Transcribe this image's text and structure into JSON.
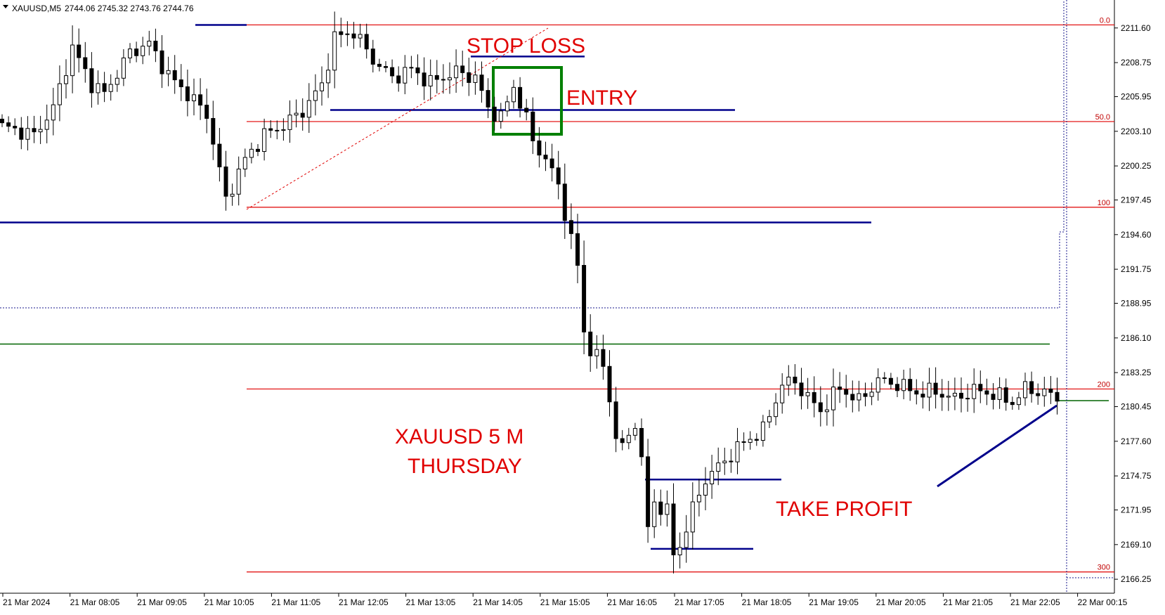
{
  "header": {
    "symbol": "XAUUSD,M5",
    "ohlc": "2744.06 2745.32 2743.76 2744.76"
  },
  "chart_data": {
    "type": "candlestick",
    "y_ticks": [
      2211.6,
      2208.75,
      2205.95,
      2203.1,
      2200.25,
      2197.45,
      2194.6,
      2191.75,
      2188.95,
      2186.1,
      2183.25,
      2180.45,
      2177.6,
      2174.75,
      2171.95,
      2169.1,
      2166.25
    ],
    "y_tick_labels": [
      "2211.60",
      "2208.75",
      "2205.95",
      "2203.10",
      "2200.25",
      "2197.45",
      "2194.60",
      "2191.75",
      "2188.95",
      "2186.10",
      "2183.25",
      "2180.45",
      "2177.60",
      "2174.75",
      "2171.95",
      "2169.10",
      "2166.25"
    ],
    "ylim": [
      2165.1,
      2213.9
    ],
    "x_tick_labels": [
      "21 Mar 2024",
      "21 Mar 08:05",
      "21 Mar 09:05",
      "21 Mar 10:05",
      "21 Mar 11:05",
      "21 Mar 12:05",
      "21 Mar 13:05",
      "21 Mar 14:05",
      "21 Mar 15:05",
      "21 Mar 16:05",
      "21 Mar 17:05",
      "21 Mar 18:05",
      "21 Mar 19:05",
      "21 Mar 20:05",
      "21 Mar 21:05",
      "21 Mar 22:05",
      "22 Mar 00:15"
    ],
    "fib_levels": [
      {
        "label": "0.0",
        "price": 2211.85
      },
      {
        "label": "50.0",
        "price": 2203.9
      },
      {
        "label": "100",
        "price": 2196.85
      },
      {
        "label": "200",
        "price": 2181.9
      },
      {
        "label": "300",
        "price": 2166.85
      }
    ],
    "horizontal_lines": [
      {
        "name": "blue-stop-loss",
        "price": 2209.25,
        "color": "#00008b"
      },
      {
        "name": "blue-entry",
        "price": 2204.85,
        "color": "#00008b"
      },
      {
        "name": "blue-long",
        "price": 2195.6,
        "color": "#00008b"
      },
      {
        "name": "green-long",
        "price": 2185.6,
        "color": "#006400"
      },
      {
        "name": "blue-tp-upper",
        "price": 2174.45,
        "color": "#00008b"
      },
      {
        "name": "blue-tp-lower",
        "price": 2168.75,
        "color": "#00008b"
      }
    ],
    "candles": {
      "anchors": [
        [
          0,
          2203.5
        ],
        [
          5,
          2202.8
        ],
        [
          8,
          2205.0
        ],
        [
          11,
          2210.0
        ],
        [
          14,
          2207.0
        ],
        [
          16,
          2206.2
        ],
        [
          20,
          2209.6
        ],
        [
          23,
          2210.3
        ],
        [
          26,
          2207.7
        ],
        [
          29,
          2206.2
        ],
        [
          32,
          2204.5
        ],
        [
          33,
          2202.2
        ],
        [
          35,
          2197.5
        ],
        [
          38,
          2200.8
        ],
        [
          41,
          2202.8
        ],
        [
          44,
          2203.6
        ],
        [
          47,
          2204.8
        ],
        [
          50,
          2206.9
        ],
        [
          52,
          2210.8
        ],
        [
          55,
          2211.3
        ],
        [
          58,
          2209.0
        ],
        [
          61,
          2207.5
        ],
        [
          64,
          2208.2
        ],
        [
          67,
          2207.1
        ],
        [
          71,
          2208.0
        ],
        [
          74,
          2207.5
        ],
        [
          76,
          2205.0
        ],
        [
          78,
          2204.2
        ],
        [
          80,
          2206.8
        ],
        [
          82,
          2204.1
        ],
        [
          83,
          2202.3
        ],
        [
          85,
          2200.8
        ],
        [
          87,
          2198.7
        ],
        [
          88,
          2196.4
        ],
        [
          89,
          2194.2
        ],
        [
          90,
          2192.0
        ],
        [
          91,
          2186.6
        ],
        [
          92,
          2185.2
        ],
        [
          94,
          2183.8
        ],
        [
          95,
          2181.1
        ],
        [
          96,
          2178.0
        ],
        [
          97,
          2177.0
        ],
        [
          99,
          2179.2
        ],
        [
          100,
          2176.0
        ],
        [
          101,
          2170.4
        ],
        [
          102,
          2172.6
        ],
        [
          104,
          2171.8
        ],
        [
          105,
          2168.3
        ],
        [
          106,
          2169.0
        ],
        [
          108,
          2172.0
        ],
        [
          110,
          2174.5
        ],
        [
          113,
          2176.0
        ],
        [
          116,
          2177.5
        ],
        [
          119,
          2178.5
        ],
        [
          122,
          2182.3
        ],
        [
          124,
          2182.5
        ],
        [
          126,
          2181.2
        ],
        [
          128,
          2180.1
        ],
        [
          131,
          2182.0
        ],
        [
          134,
          2180.9
        ],
        [
          137,
          2182.6
        ],
        [
          140,
          2182.3
        ],
        [
          143,
          2181.6
        ],
        [
          146,
          2181.7
        ],
        [
          149,
          2181.1
        ],
        [
          152,
          2181.8
        ],
        [
          155,
          2181.5
        ],
        [
          158,
          2180.8
        ],
        [
          160,
          2181.9
        ],
        [
          163,
          2181.6
        ],
        [
          165,
          2181.2
        ]
      ],
      "last_close": 2180.9
    }
  },
  "annotations": {
    "stop_loss": "STOP LOSS",
    "entry": "ENTRY",
    "title_line1": "XAUUSD 5 M",
    "title_line2": "THURSDAY",
    "take_profit": "TAKE PROFIT"
  },
  "colors": {
    "fib_red": "#e00000",
    "blue_line": "#00008b",
    "green_line": "#006400",
    "entry_box": "#008000",
    "candle": "#000000"
  }
}
